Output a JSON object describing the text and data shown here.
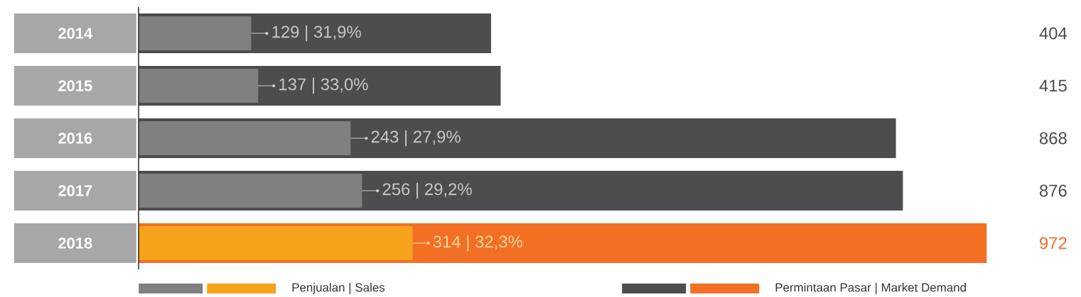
{
  "chart_data": {
    "type": "bar",
    "orientation": "horizontal",
    "legend": "bottom",
    "categories": [
      "2014",
      "2015",
      "2016",
      "2017",
      "2018"
    ],
    "series": [
      {
        "name": "Permintaan Pasar | Market Demand",
        "colors": [
          "#4d4d4f",
          "#4d4d4f",
          "#4d4d4f",
          "#4d4d4f",
          "#f26f24"
        ],
        "values": [
          404,
          415,
          868,
          876,
          972
        ],
        "value_labels": [
          "404",
          "415",
          "868",
          "876",
          "972"
        ]
      },
      {
        "name": "Penjualan | Sales",
        "colors": [
          "#808080",
          "#808080",
          "#808080",
          "#808080",
          "#f7a21b"
        ],
        "values": [
          129,
          137,
          243,
          256,
          314
        ],
        "value_labels": [
          "129 | 31,9%",
          "137 | 33,0%",
          "243 | 27,9%",
          "256 | 29,2%",
          "314 | 32,3%"
        ]
      }
    ]
  }
}
